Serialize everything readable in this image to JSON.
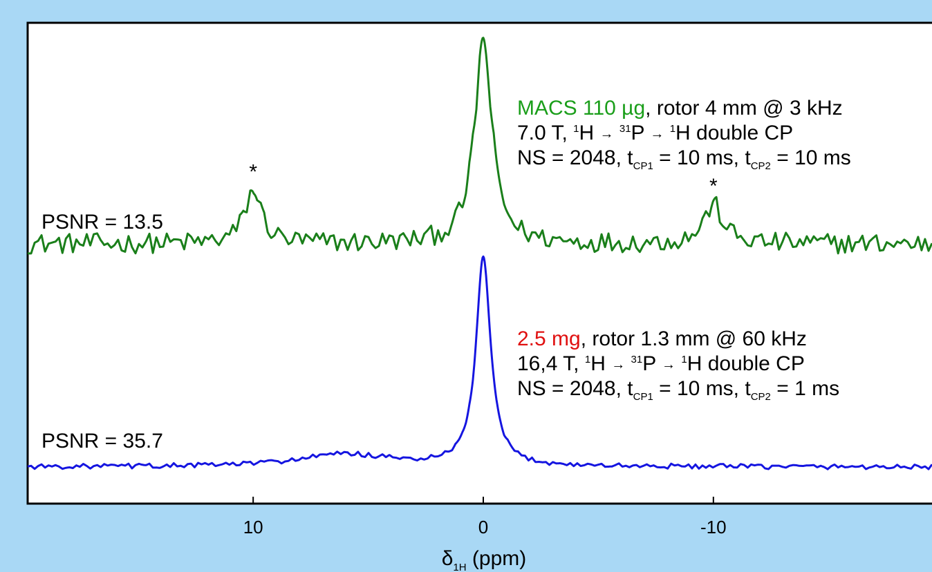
{
  "chart_data": {
    "type": "line",
    "xlabel": "δ",
    "xlabel_sub": "1H",
    "xlabel_unit": " (ppm)",
    "x_reversed": true,
    "xlim": [
      19.8,
      -19.5
    ],
    "xticks": [
      {
        "value": 10,
        "label": "10"
      },
      {
        "value": 0,
        "label": "0"
      },
      {
        "value": -10,
        "label": "-10"
      }
    ],
    "series": [
      {
        "key": "top",
        "color": "#1a7f1a",
        "psnr": "PSNR = 13.5",
        "peaks": [
          {
            "x": 0,
            "height": 1.0,
            "width": 0.45
          },
          {
            "x": 10,
            "height": 0.26,
            "width": 0.45
          },
          {
            "x": -10,
            "height": 0.19,
            "width": 0.5
          }
        ],
        "noise": 0.05,
        "asterisks": [
          10,
          -10
        ],
        "annotation": [
          [
            {
              "t": "MACS 110 µg",
              "c": "#1a9e1a"
            },
            {
              "t": ", rotor 4 mm @ 3 kHz"
            }
          ],
          [
            {
              "t": "7.0 T, "
            },
            {
              "t": "1",
              "sup": true
            },
            {
              "t": "H "
            },
            {
              "t": "→",
              "arrow": true
            },
            {
              "t": " "
            },
            {
              "t": "31",
              "sup": true
            },
            {
              "t": "P "
            },
            {
              "t": "→",
              "arrow": true
            },
            {
              "t": " "
            },
            {
              "t": "1",
              "sup": true
            },
            {
              "t": "H double CP"
            }
          ],
          [
            {
              "t": "NS = 2048, t"
            },
            {
              "t": "CP1",
              "sub": true
            },
            {
              "t": " = 10 ms, t"
            },
            {
              "t": "CP2",
              "sub": true
            },
            {
              "t": " = 10 ms"
            }
          ]
        ]
      },
      {
        "key": "bottom",
        "color": "#1515e0",
        "psnr": "PSNR = 35.7",
        "peaks": [
          {
            "x": 0,
            "height": 1.0,
            "width": 0.38
          },
          {
            "x": 6,
            "height": 0.06,
            "width": 2.5
          }
        ],
        "noise": 0.012,
        "asterisks": [],
        "annotation": [
          [
            {
              "t": "2.5 mg",
              "c": "#e01010"
            },
            {
              "t": ", rotor 1.3 mm @ 60 kHz"
            }
          ],
          [
            {
              "t": "16,4 T, "
            },
            {
              "t": "1",
              "sup": true
            },
            {
              "t": "H "
            },
            {
              "t": "→",
              "arrow": true
            },
            {
              "t": " "
            },
            {
              "t": "31",
              "sup": true
            },
            {
              "t": "P "
            },
            {
              "t": "→",
              "arrow": true
            },
            {
              "t": " "
            },
            {
              "t": "1",
              "sup": true
            },
            {
              "t": "H double CP"
            }
          ],
          [
            {
              "t": "NS = 2048, t"
            },
            {
              "t": "CP1",
              "sub": true
            },
            {
              "t": " = 10 ms, t"
            },
            {
              "t": "CP2",
              "sub": true
            },
            {
              "t": " = 1 ms"
            }
          ]
        ]
      }
    ],
    "asterisk_label": "*"
  }
}
